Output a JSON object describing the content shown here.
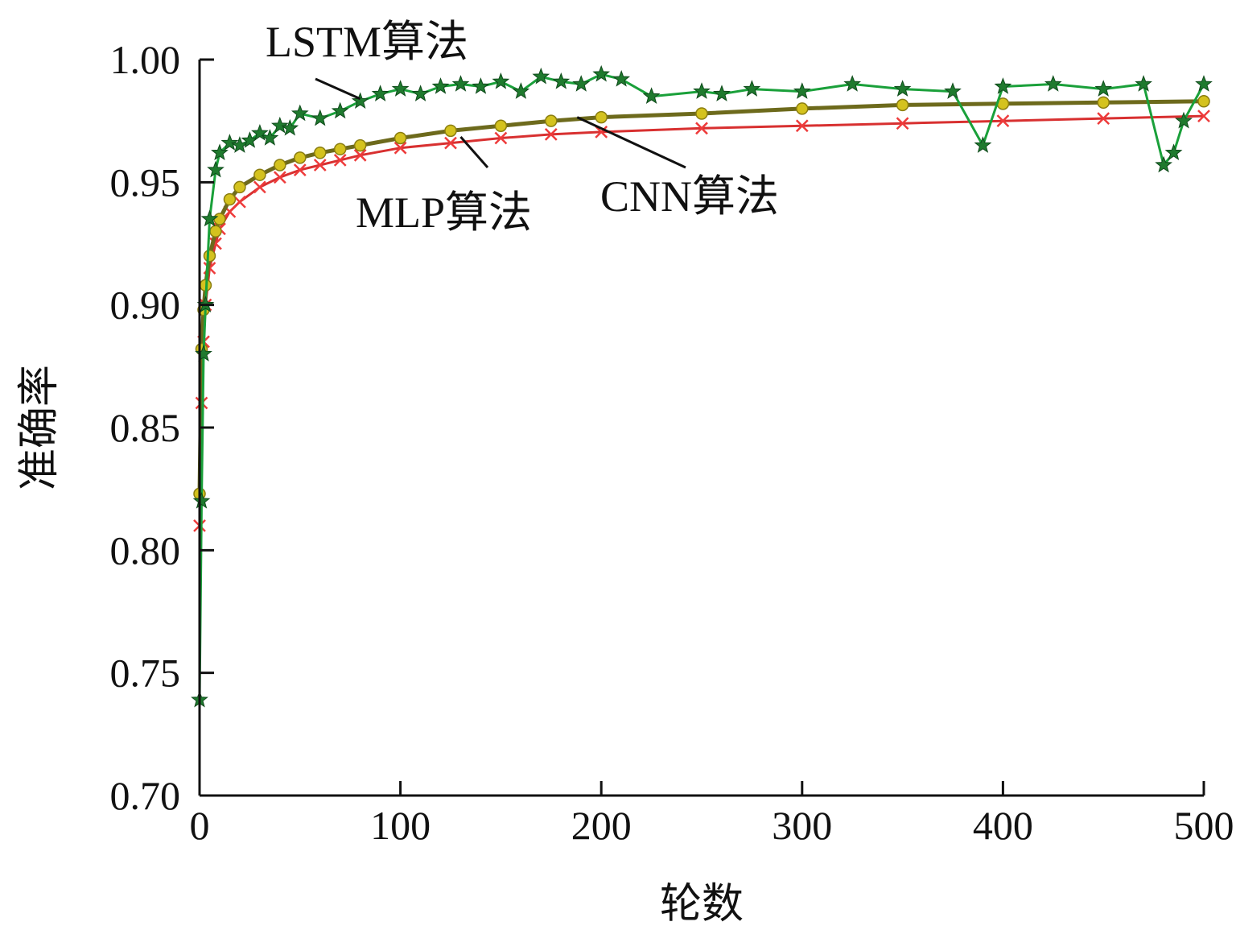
{
  "chart_data": {
    "type": "line",
    "title": "",
    "xlabel": "轮数",
    "ylabel": "准确率",
    "xlim": [
      0,
      500
    ],
    "ylim": [
      0.7,
      1.0
    ],
    "xticks": [
      0,
      100,
      200,
      300,
      400,
      500
    ],
    "xtick_labels": [
      "0",
      "100",
      "200",
      "300",
      "400",
      "500"
    ],
    "yticks": [
      0.7,
      0.75,
      0.8,
      0.85,
      0.9,
      0.95,
      1.0
    ],
    "ytick_labels": [
      "0.70",
      "0.75",
      "0.80",
      "0.85",
      "0.90",
      "0.95",
      "1.00"
    ],
    "grid": false,
    "legend": "none",
    "series": [
      {
        "name": "MLP算法",
        "color": "#ee3b3b",
        "marker": "x",
        "x": [
          0,
          1,
          2,
          3,
          5,
          8,
          10,
          15,
          20,
          30,
          40,
          50,
          60,
          70,
          80,
          100,
          125,
          150,
          175,
          200,
          250,
          300,
          350,
          400,
          450,
          500
        ],
        "y": [
          0.81,
          0.86,
          0.885,
          0.9,
          0.915,
          0.925,
          0.931,
          0.938,
          0.942,
          0.948,
          0.952,
          0.955,
          0.957,
          0.959,
          0.961,
          0.964,
          0.966,
          0.968,
          0.9695,
          0.9705,
          0.972,
          0.973,
          0.974,
          0.975,
          0.976,
          0.977
        ]
      },
      {
        "name": "CNN算法",
        "color": "#d4c21e",
        "marker": "circle",
        "x": [
          0,
          1,
          2,
          3,
          5,
          8,
          10,
          15,
          20,
          30,
          40,
          50,
          60,
          70,
          80,
          100,
          125,
          150,
          175,
          200,
          250,
          300,
          350,
          400,
          450,
          500
        ],
        "y": [
          0.823,
          0.882,
          0.898,
          0.908,
          0.92,
          0.93,
          0.935,
          0.943,
          0.948,
          0.953,
          0.957,
          0.96,
          0.962,
          0.9635,
          0.965,
          0.968,
          0.971,
          0.973,
          0.975,
          0.9765,
          0.978,
          0.98,
          0.9815,
          0.982,
          0.9825,
          0.983
        ]
      },
      {
        "name": "LSTM算法",
        "color": "#1f7a2e",
        "marker": "star",
        "x": [
          0,
          1,
          2,
          3,
          5,
          8,
          10,
          15,
          20,
          25,
          30,
          35,
          40,
          45,
          50,
          60,
          70,
          80,
          90,
          100,
          110,
          120,
          130,
          140,
          150,
          160,
          170,
          180,
          190,
          200,
          210,
          225,
          250,
          260,
          275,
          300,
          325,
          350,
          375,
          390,
          400,
          425,
          450,
          470,
          480,
          485,
          490,
          500
        ],
        "y": [
          0.739,
          0.82,
          0.88,
          0.9,
          0.935,
          0.955,
          0.962,
          0.966,
          0.965,
          0.967,
          0.97,
          0.968,
          0.973,
          0.972,
          0.978,
          0.976,
          0.979,
          0.983,
          0.986,
          0.988,
          0.986,
          0.989,
          0.99,
          0.989,
          0.991,
          0.987,
          0.993,
          0.991,
          0.99,
          0.994,
          0.992,
          0.985,
          0.987,
          0.986,
          0.988,
          0.987,
          0.99,
          0.988,
          0.987,
          0.965,
          0.989,
          0.99,
          0.988,
          0.99,
          0.957,
          0.962,
          0.975,
          0.99
        ]
      }
    ],
    "annotations": [
      {
        "text": "LSTM算法",
        "series": "LSTM算法",
        "at_x": 80,
        "at_y": 0.984
      },
      {
        "text": "MLP算法",
        "series": "MLP算法",
        "at_x": 130,
        "at_y": 0.9685
      },
      {
        "text": "CNN算法",
        "series": "CNN算法",
        "at_x": 188,
        "at_y": 0.9765
      }
    ]
  }
}
